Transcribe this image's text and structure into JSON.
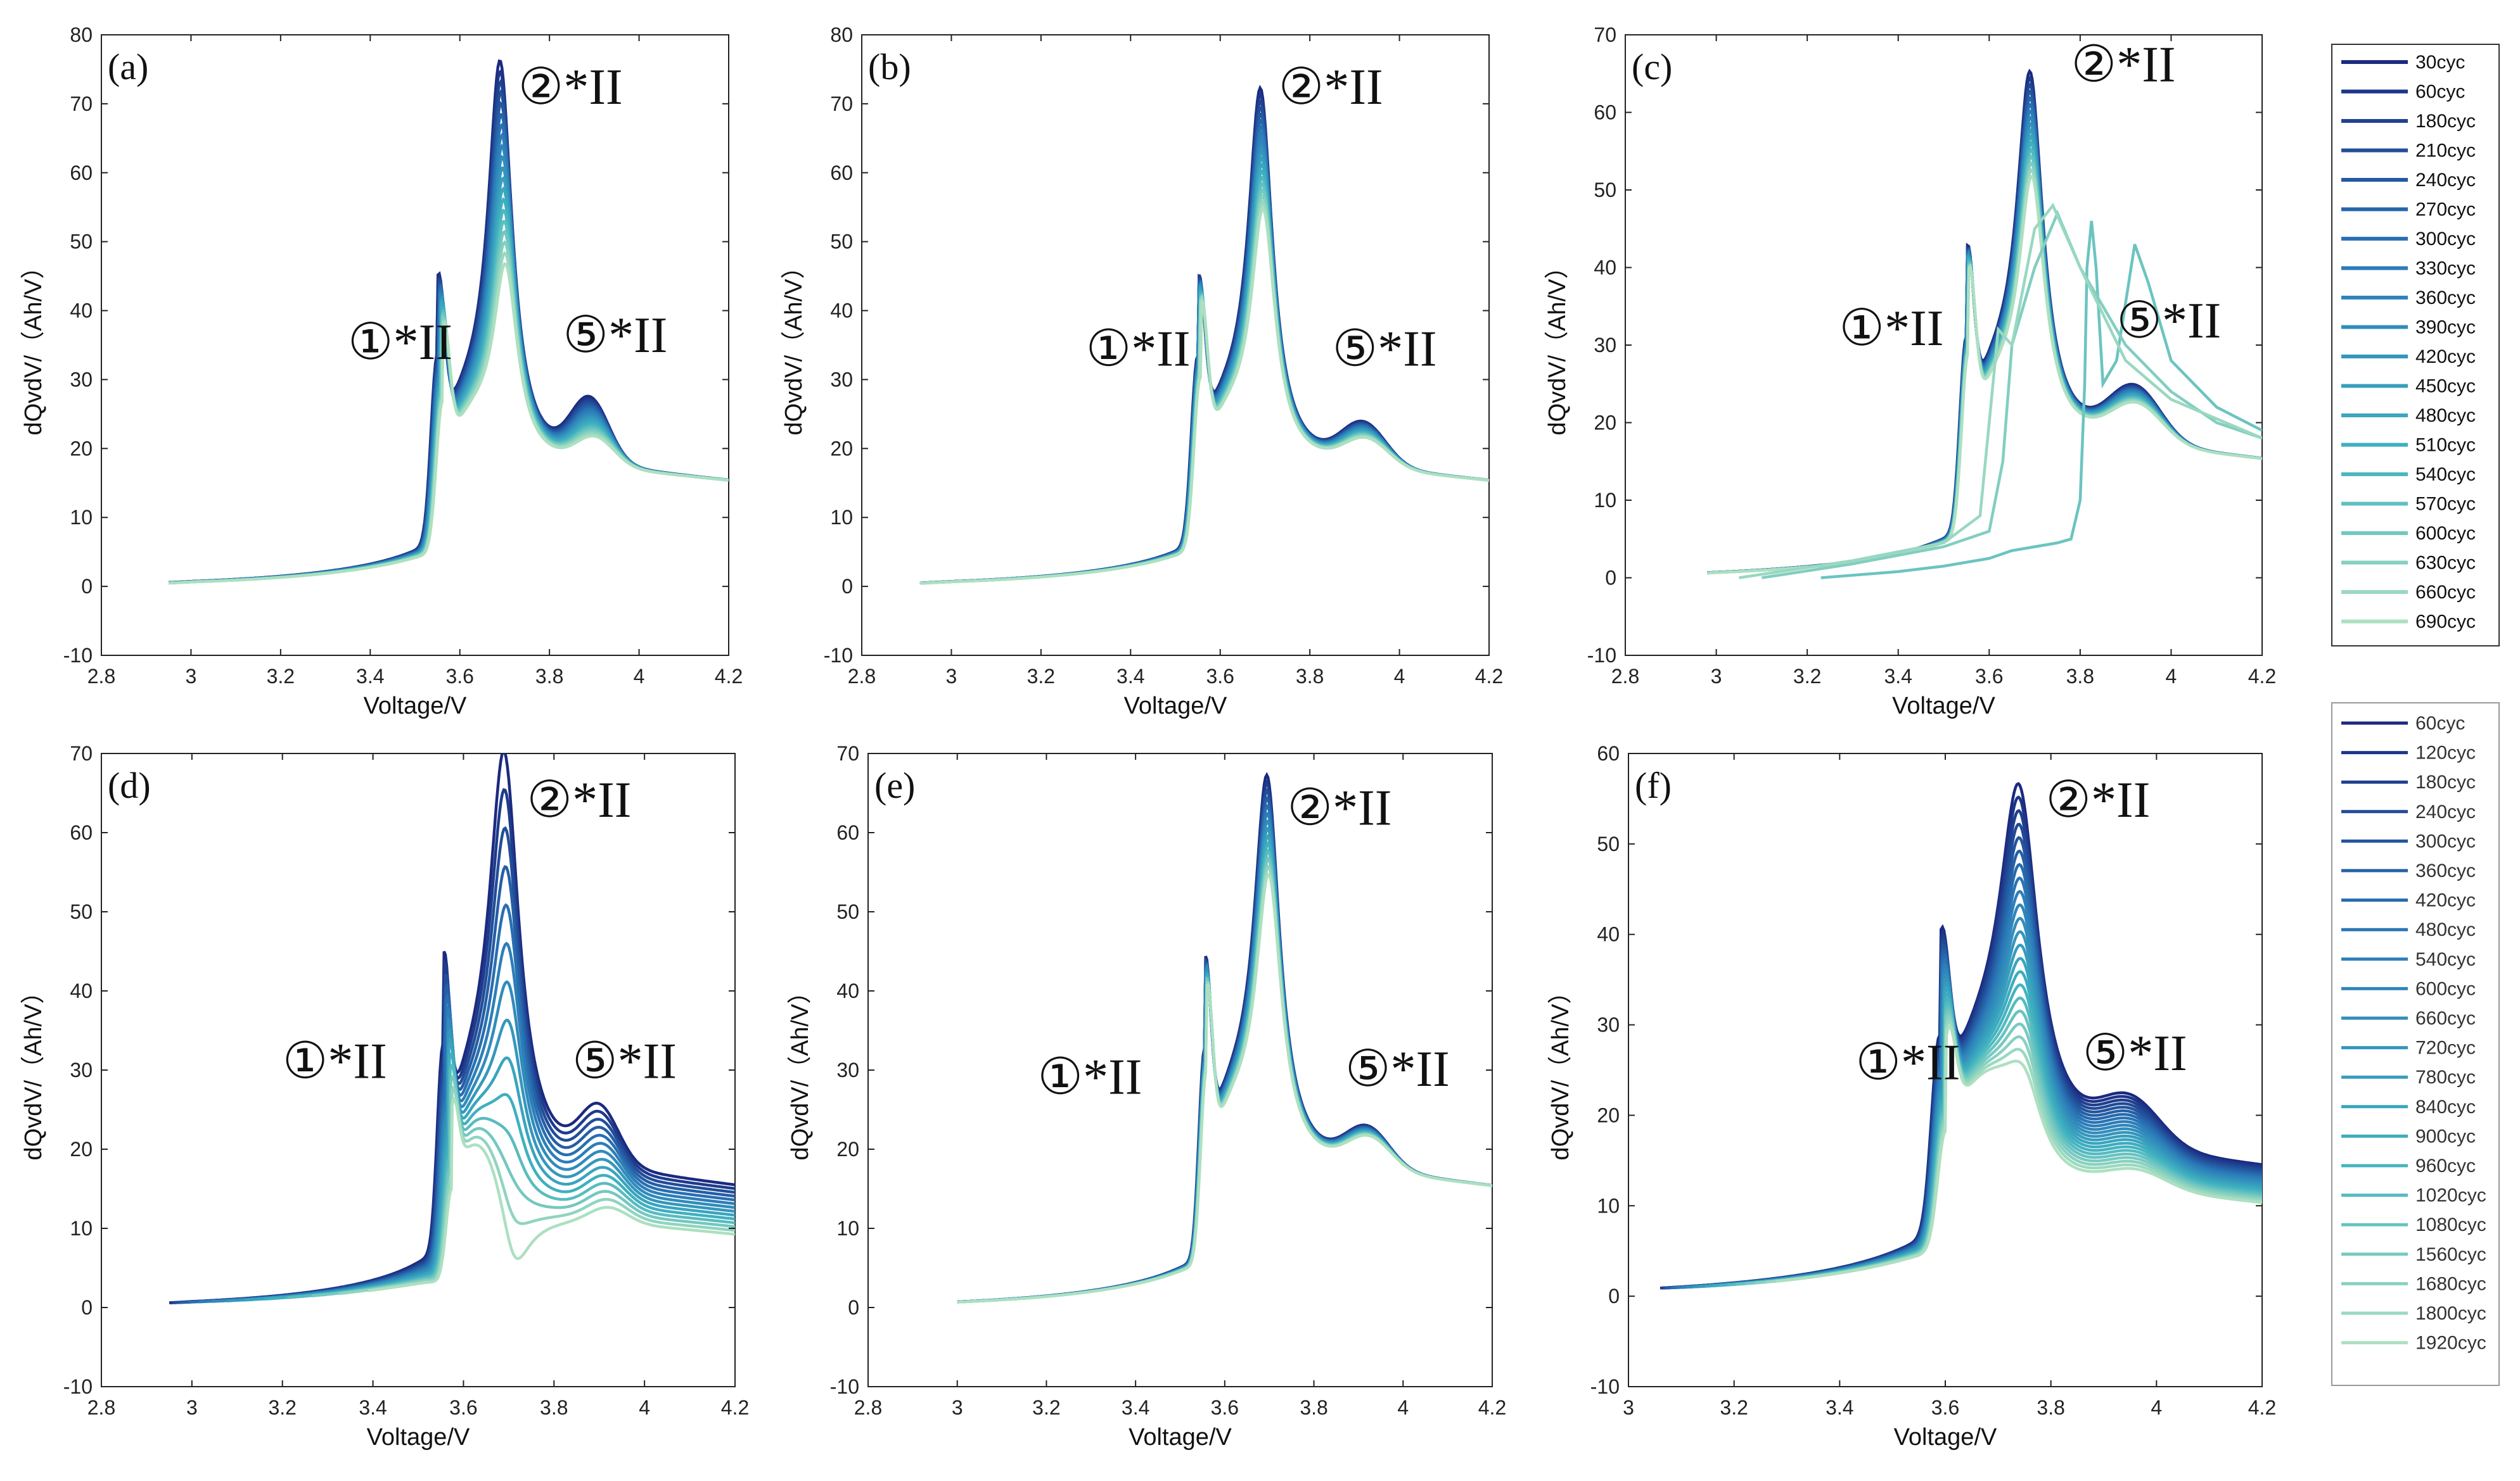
{
  "colors": {
    "dark": "#1b2a80",
    "mid": "#2a79b8",
    "teal": "#3fb2c0",
    "light": "#bfe8c0"
  },
  "legend_top": [
    "30cyc",
    "60cyc",
    "180cyc",
    "210cyc",
    "240cyc",
    "270cyc",
    "300cyc",
    "330cyc",
    "360cyc",
    "390cyc",
    "420cyc",
    "450cyc",
    "480cyc",
    "510cyc",
    "540cyc",
    "570cyc",
    "600cyc",
    "630cyc",
    "660cyc",
    "690cyc"
  ],
  "legend_bottom": [
    "60cyc",
    "120cyc",
    "180cyc",
    "240cyc",
    "300cyc",
    "360cyc",
    "420cyc",
    "480cyc",
    "540cyc",
    "600cyc",
    "660cyc",
    "720cyc",
    "780cyc",
    "840cyc",
    "900cyc",
    "960cyc",
    "1020cyc",
    "1080cyc",
    "1560cyc",
    "1680cyc",
    "1800cyc",
    "1920cyc"
  ],
  "chart_data": [
    {
      "type": "line",
      "panel": "(a)",
      "xlabel": "Voltage/V",
      "ylabel": "dQvdV/（Ah/V）",
      "xlim": [
        2.8,
        4.2
      ],
      "ylim": [
        -10,
        80
      ],
      "xticks": [
        "2.8",
        "3",
        "3.2",
        "3.4",
        "3.6",
        "3.8",
        "4",
        "4.2"
      ],
      "yticks": [
        "-10",
        "0",
        "10",
        "20",
        "30",
        "40",
        "50",
        "60",
        "70",
        "80"
      ],
      "legend": "top",
      "annotations": [
        {
          "text": "①*II",
          "x": 3.35,
          "y": 33
        },
        {
          "text": "②*II",
          "x": 3.73,
          "y": 70
        },
        {
          "text": "⑤*II",
          "x": 3.83,
          "y": 34
        }
      ],
      "curve": {
        "start": 2.95,
        "end": 4.2,
        "n": 20,
        "p1": {
          "v": 3.55,
          "h": 38,
          "hEnd": 31,
          "w": 0.02
        },
        "p2": {
          "v": 3.69,
          "h": 76,
          "hEnd": 47,
          "w": 0.033
        },
        "p5": {
          "v": 3.89,
          "h": 9,
          "hEnd": 4,
          "w": 0.06
        },
        "tail": {
          "a": 17,
          "b": 0.8
        },
        "vshift": 0.012
      }
    },
    {
      "type": "line",
      "panel": "(b)",
      "xlabel": "Voltage/V",
      "ylabel": "dQvdV/（Ah/V）",
      "xlim": [
        2.8,
        4.2
      ],
      "ylim": [
        -10,
        80
      ],
      "xticks": [
        "2.8",
        "3",
        "3.2",
        "3.4",
        "3.6",
        "3.8",
        "4",
        "4.2"
      ],
      "yticks": [
        "-10",
        "0",
        "10",
        "20",
        "30",
        "40",
        "50",
        "60",
        "70",
        "80"
      ],
      "legend": "top",
      "annotations": [
        {
          "text": "①*II",
          "x": 3.3,
          "y": 32
        },
        {
          "text": "②*II",
          "x": 3.73,
          "y": 70
        },
        {
          "text": "⑤*II",
          "x": 3.85,
          "y": 32
        }
      ],
      "curve": {
        "start": 2.93,
        "end": 4.2,
        "n": 20,
        "p1": {
          "v": 3.55,
          "h": 38,
          "hEnd": 35,
          "w": 0.02
        },
        "p2": {
          "v": 3.69,
          "h": 72,
          "hEnd": 55,
          "w": 0.033
        },
        "p5": {
          "v": 3.92,
          "h": 6,
          "hEnd": 4,
          "w": 0.07
        },
        "tail": {
          "a": 17,
          "b": 0.8
        },
        "vshift": 0.006
      }
    },
    {
      "type": "line",
      "panel": "(c)",
      "xlabel": "Voltage/V",
      "ylabel": "dQvdV/（Ah/V）",
      "xlim": [
        2.8,
        4.2
      ],
      "ylim": [
        -10,
        70
      ],
      "xticks": [
        "2.8",
        "3",
        "3.2",
        "3.4",
        "3.6",
        "3.8",
        "4",
        "4.2"
      ],
      "yticks": [
        "-10",
        "0",
        "10",
        "20",
        "30",
        "40",
        "50",
        "60",
        "70"
      ],
      "legend": "top",
      "annotations": [
        {
          "text": "①*II",
          "x": 3.27,
          "y": 30
        },
        {
          "text": "②*II",
          "x": 3.78,
          "y": 64
        },
        {
          "text": "⑤*II",
          "x": 3.88,
          "y": 31
        }
      ],
      "curve": {
        "start": 2.98,
        "end": 4.2,
        "n": 17,
        "p1": {
          "v": 3.55,
          "h": 35,
          "hEnd": 33,
          "w": 0.02
        },
        "p2": {
          "v": 3.69,
          "h": 65,
          "hEnd": 52,
          "w": 0.035
        },
        "p5": {
          "v": 3.92,
          "h": 7,
          "hEnd": 5,
          "w": 0.08
        },
        "tail": {
          "a": 17,
          "b": 0.8
        },
        "vshift": 0.004
      },
      "outliers": [
        {
          "points": [
            [
              3.23,
              0
            ],
            [
              3.4,
              0.8
            ],
            [
              3.5,
              1.5
            ],
            [
              3.6,
              2.5
            ],
            [
              3.65,
              3.5
            ],
            [
              3.7,
              4
            ],
            [
              3.75,
              4.5
            ],
            [
              3.78,
              5
            ],
            [
              3.8,
              10
            ],
            [
              3.81,
              25
            ],
            [
              3.815,
              40
            ],
            [
              3.825,
              46
            ],
            [
              3.835,
              40
            ],
            [
              3.85,
              25
            ],
            [
              3.88,
              28
            ],
            [
              3.92,
              43
            ],
            [
              3.95,
              38
            ],
            [
              4.0,
              28
            ],
            [
              4.1,
              22
            ],
            [
              4.2,
              19
            ]
          ]
        },
        {
          "points": [
            [
              3.1,
              0
            ],
            [
              3.3,
              1.8
            ],
            [
              3.5,
              4
            ],
            [
              3.6,
              6
            ],
            [
              3.63,
              15
            ],
            [
              3.65,
              30
            ],
            [
              3.7,
              40
            ],
            [
              3.75,
              47
            ],
            [
              3.8,
              40
            ],
            [
              3.9,
              30
            ],
            [
              4.0,
              24
            ],
            [
              4.1,
              20
            ],
            [
              4.2,
              18
            ]
          ]
        },
        {
          "points": [
            [
              3.05,
              0
            ],
            [
              3.3,
              2.2
            ],
            [
              3.5,
              4.5
            ],
            [
              3.58,
              8
            ],
            [
              3.6,
              20
            ],
            [
              3.62,
              32
            ],
            [
              3.65,
              30
            ],
            [
              3.7,
              45
            ],
            [
              3.74,
              48
            ],
            [
              3.8,
              40
            ],
            [
              3.9,
              28
            ],
            [
              4.0,
              23
            ],
            [
              4.2,
              18
            ]
          ]
        }
      ]
    },
    {
      "type": "line",
      "panel": "(d)",
      "xlabel": "Voltage/V",
      "ylabel": "dQvdV/（Ah/V）",
      "xlim": [
        2.8,
        4.2
      ],
      "ylim": [
        -10,
        70
      ],
      "xticks": [
        "2.8",
        "3",
        "3.2",
        "3.4",
        "3.6",
        "3.8",
        "4",
        "4.2"
      ],
      "yticks": [
        "-10",
        "0",
        "10",
        "20",
        "30",
        "40",
        "50",
        "60",
        "70"
      ],
      "legend": "bottom",
      "annotations": [
        {
          "text": "①*II",
          "x": 3.2,
          "y": 29
        },
        {
          "text": "②*II",
          "x": 3.74,
          "y": 62
        },
        {
          "text": "⑤*II",
          "x": 3.84,
          "y": 29
        }
      ],
      "curve": {
        "start": 2.95,
        "end": 4.2,
        "n": 14,
        "p1": {
          "v": 3.555,
          "h": 36,
          "hEnd": 18,
          "w": 0.018
        },
        "p2": {
          "v": 3.69,
          "h": 70,
          "hEnd": 10,
          "w": 0.04
        },
        "p5": {
          "v": 3.9,
          "h": 7,
          "hEnd": 2,
          "w": 0.06
        },
        "tail": {
          "a": 17,
          "b": 0.8,
          "aEnd": 11
        },
        "vshift": 0.02,
        "startShift": 0.44
      }
    },
    {
      "type": "line",
      "panel": "(e)",
      "xlabel": "Voltage/V",
      "ylabel": "dQvdV/（Ah/V）",
      "xlim": [
        2.8,
        4.2
      ],
      "ylim": [
        -10,
        70
      ],
      "xticks": [
        "2.8",
        "3",
        "3.2",
        "3.4",
        "3.6",
        "3.8",
        "4",
        "4.2"
      ],
      "yticks": [
        "-10",
        "0",
        "10",
        "20",
        "30",
        "40",
        "50",
        "60",
        "70"
      ],
      "legend": "bottom",
      "annotations": [
        {
          "text": "①*II",
          "x": 3.18,
          "y": 27
        },
        {
          "text": "②*II",
          "x": 3.74,
          "y": 61
        },
        {
          "text": "⑤*II",
          "x": 3.87,
          "y": 28
        }
      ],
      "curve": {
        "start": 3.0,
        "end": 4.2,
        "n": 14,
        "p1": {
          "v": 3.555,
          "h": 37,
          "hEnd": 34,
          "w": 0.018
        },
        "p2": {
          "v": 3.695,
          "h": 67,
          "hEnd": 55,
          "w": 0.035
        },
        "p5": {
          "v": 3.92,
          "h": 5,
          "hEnd": 4,
          "w": 0.07
        },
        "tail": {
          "a": 17,
          "b": 0.8
        },
        "vshift": 0.004
      }
    },
    {
      "type": "line",
      "panel": "(f)",
      "xlabel": "Voltage/V",
      "ylabel": "dQvdV/（Ah/V）",
      "xlim": [
        3.0,
        4.2
      ],
      "ylim": [
        -10,
        60
      ],
      "xticks": [
        "3",
        "3.2",
        "3.4",
        "3.6",
        "3.8",
        "4",
        "4.2"
      ],
      "yticks": [
        "-10",
        "0",
        "10",
        "20",
        "30",
        "40",
        "50",
        "60"
      ],
      "legend": "bottom",
      "annotations": [
        {
          "text": "①*II",
          "x": 3.43,
          "y": 24
        },
        {
          "text": "②*II",
          "x": 3.79,
          "y": 53
        },
        {
          "text": "⑤*II",
          "x": 3.86,
          "y": 25
        }
      ],
      "curve": {
        "start": 3.06,
        "end": 4.2,
        "n": 22,
        "p1": {
          "v": 3.59,
          "h": 31,
          "hEnd": 20,
          "w": 0.022
        },
        "p2": {
          "v": 3.74,
          "h": 57,
          "hEnd": 28,
          "w": 0.045
        },
        "p5": {
          "v": 3.95,
          "h": 5,
          "hEnd": 2,
          "w": 0.08
        },
        "tail": {
          "a": 16,
          "b": 0.75,
          "aEnd": 12
        },
        "vshift": 0.012,
        "startShift": 0.22
      }
    }
  ]
}
